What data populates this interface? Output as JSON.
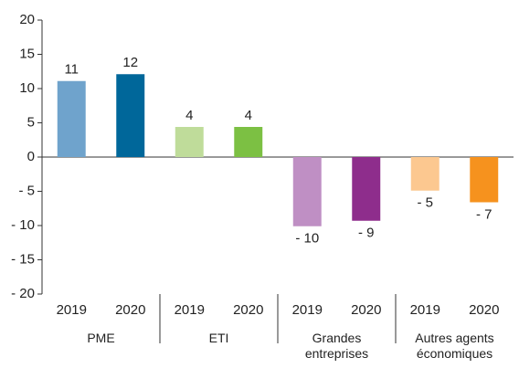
{
  "chart_data": {
    "type": "bar",
    "categories": [
      "2019",
      "2020",
      "2019",
      "2020",
      "2019",
      "2020",
      "2019",
      "2020"
    ],
    "groups": [
      "PME",
      "ETI",
      "Grandes entreprises",
      "Autres agents économiques"
    ],
    "values": [
      11.1,
      12.1,
      4.4,
      4.4,
      -10.1,
      -9.3,
      -4.9,
      -6.6
    ],
    "value_labels": [
      "11",
      "12",
      "4",
      "4",
      "- 10",
      "- 9",
      "- 5",
      "- 7"
    ],
    "colors": [
      "#6fa3cc",
      "#00679a",
      "#bfdc9a",
      "#7cc043",
      "#bf8fc4",
      "#8e2d8c",
      "#fcc890",
      "#f6921e"
    ],
    "ylim": [
      -20,
      20
    ],
    "yticks": [
      {
        "value": -20,
        "label": "- 20"
      },
      {
        "value": -15,
        "label": "- 15"
      },
      {
        "value": -10,
        "label": "- 10"
      },
      {
        "value": -5,
        "label": "- 5"
      },
      0,
      5,
      10,
      15,
      20
    ],
    "grid": false
  }
}
